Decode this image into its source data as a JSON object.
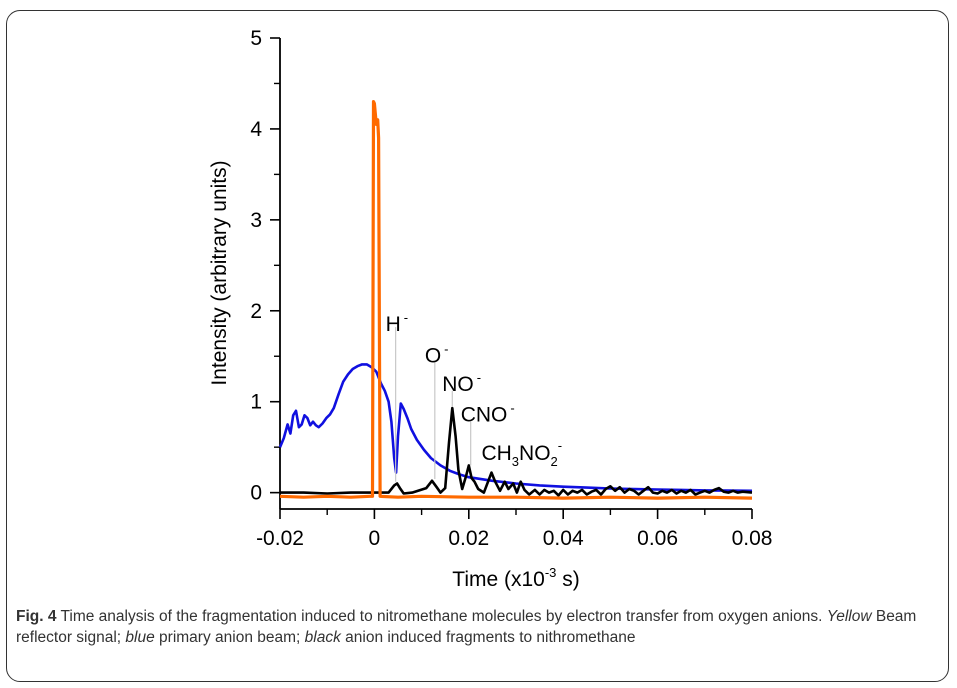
{
  "figure": {
    "caption_label": "Fig. 4",
    "caption_text_1": " Time analysis of the fragmentation induced to nitromethane molecules by electron transfer from oxygen anions. ",
    "caption_italic_1": "Yellow",
    "caption_text_2": " Beam reflector signal; ",
    "caption_italic_2": "blue",
    "caption_text_3": " primary anion beam; ",
    "caption_italic_3": "black",
    "caption_text_4": " anion induced fragments to nithromethane"
  },
  "chart_data": {
    "type": "line",
    "xlabel": "Time (x10",
    "xlabel_sup": "-3",
    "xlabel_tail": " s)",
    "ylabel": "Intensity (arbitrary units)",
    "xlim": [
      -0.02,
      0.08
    ],
    "ylim": [
      -0.18,
      5
    ],
    "x_ticks": [
      -0.02,
      0,
      0.02,
      0.04,
      0.06,
      0.08
    ],
    "x_tick_labels": [
      "-0.02",
      "0",
      "0.02",
      "0.04",
      "0.06",
      "0.08"
    ],
    "y_ticks": [
      0,
      1,
      2,
      3,
      4,
      5
    ],
    "y_tick_labels": [
      "0",
      "1",
      "2",
      "3",
      "4",
      "5"
    ],
    "grid": false,
    "legend": "none",
    "annotations": [
      {
        "text": "H",
        "sup": "-",
        "x": 0.0045,
        "y": 1.78,
        "line_top": 1.82,
        "line_bottom": 0.12
      },
      {
        "text": "O",
        "sup": "-",
        "x": 0.0128,
        "y": 1.43,
        "line_top": 1.45,
        "line_bottom": 0.15
      },
      {
        "text": "NO",
        "sup": "-",
        "x": 0.0165,
        "y": 1.12,
        "line_top": 1.12,
        "line_bottom": 0.95
      },
      {
        "text": "CNO",
        "sup": "-",
        "x": 0.0204,
        "y": 0.78,
        "line_top": 0.78,
        "line_bottom": 0.3
      },
      {
        "text": "CH",
        "sub1": "3",
        "mid": "NO",
        "sub2": "2",
        "sup": "-",
        "x": 0.0248,
        "y": 0.36
      }
    ],
    "series": [
      {
        "name": "Beam reflector signal",
        "color": "#ff6a00",
        "points": [
          [
            -0.02,
            -0.04
          ],
          [
            -0.015,
            -0.05
          ],
          [
            -0.01,
            -0.04
          ],
          [
            -0.005,
            -0.05
          ],
          [
            -0.001,
            -0.04
          ],
          [
            -0.0004,
            -0.04
          ],
          [
            -0.0002,
            4.3
          ],
          [
            0.0,
            4.28
          ],
          [
            0.0004,
            4.05
          ],
          [
            0.0007,
            4.1
          ],
          [
            0.0009,
            3.9
          ],
          [
            0.0012,
            -0.04
          ],
          [
            0.005,
            -0.05
          ],
          [
            0.01,
            -0.04
          ],
          [
            0.02,
            -0.05
          ],
          [
            0.03,
            -0.05
          ],
          [
            0.04,
            -0.06
          ],
          [
            0.05,
            -0.05
          ],
          [
            0.06,
            -0.06
          ],
          [
            0.07,
            -0.05
          ],
          [
            0.08,
            -0.06
          ]
        ]
      },
      {
        "name": "Primary anion beam",
        "color": "#1010e0",
        "points": [
          [
            -0.02,
            0.5
          ],
          [
            -0.0192,
            0.6
          ],
          [
            -0.0184,
            0.75
          ],
          [
            -0.0178,
            0.65
          ],
          [
            -0.0172,
            0.85
          ],
          [
            -0.0166,
            0.9
          ],
          [
            -0.016,
            0.72
          ],
          [
            -0.0154,
            0.75
          ],
          [
            -0.0148,
            0.85
          ],
          [
            -0.0142,
            0.82
          ],
          [
            -0.0136,
            0.74
          ],
          [
            -0.013,
            0.78
          ],
          [
            -0.0124,
            0.74
          ],
          [
            -0.0118,
            0.72
          ],
          [
            -0.011,
            0.76
          ],
          [
            -0.0102,
            0.82
          ],
          [
            -0.0094,
            0.86
          ],
          [
            -0.0086,
            0.93
          ],
          [
            -0.0076,
            1.08
          ],
          [
            -0.0066,
            1.22
          ],
          [
            -0.0056,
            1.3
          ],
          [
            -0.0046,
            1.36
          ],
          [
            -0.0036,
            1.39
          ],
          [
            -0.0026,
            1.41
          ],
          [
            -0.0016,
            1.41
          ],
          [
            -0.0006,
            1.38
          ],
          [
            0.0004,
            1.33
          ],
          [
            0.0014,
            1.2
          ],
          [
            0.0022,
            1.12
          ],
          [
            0.003,
            1.0
          ],
          [
            0.0036,
            0.78
          ],
          [
            0.0042,
            0.38
          ],
          [
            0.0046,
            0.22
          ],
          [
            0.005,
            0.62
          ],
          [
            0.0056,
            0.98
          ],
          [
            0.0062,
            0.92
          ],
          [
            0.007,
            0.82
          ],
          [
            0.0078,
            0.7
          ],
          [
            0.009,
            0.58
          ],
          [
            0.0105,
            0.47
          ],
          [
            0.012,
            0.38
          ],
          [
            0.014,
            0.3
          ],
          [
            0.016,
            0.24
          ],
          [
            0.018,
            0.2
          ],
          [
            0.02,
            0.17
          ],
          [
            0.025,
            0.13
          ],
          [
            0.03,
            0.1
          ],
          [
            0.035,
            0.08
          ],
          [
            0.04,
            0.065
          ],
          [
            0.045,
            0.055
          ],
          [
            0.05,
            0.045
          ],
          [
            0.055,
            0.04
          ],
          [
            0.06,
            0.035
          ],
          [
            0.065,
            0.03
          ],
          [
            0.07,
            0.025
          ],
          [
            0.075,
            0.022
          ],
          [
            0.08,
            0.02
          ]
        ]
      },
      {
        "name": "Anion induced fragments",
        "color": "#000000",
        "points": [
          [
            -0.02,
            0.0
          ],
          [
            -0.015,
            0.0
          ],
          [
            -0.01,
            -0.01
          ],
          [
            -0.005,
            0.0
          ],
          [
            0.0,
            0.0
          ],
          [
            0.003,
            0.0
          ],
          [
            0.0042,
            0.08
          ],
          [
            0.0048,
            0.1
          ],
          [
            0.0054,
            0.05
          ],
          [
            0.0062,
            -0.01
          ],
          [
            0.008,
            0.0
          ],
          [
            0.011,
            0.05
          ],
          [
            0.0122,
            0.13
          ],
          [
            0.0132,
            0.06
          ],
          [
            0.014,
            0.0
          ],
          [
            0.015,
            0.05
          ],
          [
            0.0158,
            0.55
          ],
          [
            0.0165,
            0.93
          ],
          [
            0.0172,
            0.62
          ],
          [
            0.0178,
            0.25
          ],
          [
            0.0186,
            0.04
          ],
          [
            0.0194,
            0.18
          ],
          [
            0.02,
            0.3
          ],
          [
            0.0206,
            0.16
          ],
          [
            0.0212,
            0.12
          ],
          [
            0.022,
            0.04
          ],
          [
            0.0232,
            0.0
          ],
          [
            0.0248,
            0.22
          ],
          [
            0.0256,
            0.12
          ],
          [
            0.0266,
            0.02
          ],
          [
            0.0276,
            0.12
          ],
          [
            0.0284,
            0.04
          ],
          [
            0.0294,
            0.1
          ],
          [
            0.0302,
            0.0
          ],
          [
            0.031,
            0.12
          ],
          [
            0.0318,
            0.03
          ],
          [
            0.0328,
            -0.02
          ],
          [
            0.034,
            0.03
          ],
          [
            0.035,
            -0.02
          ],
          [
            0.036,
            0.03
          ],
          [
            0.037,
            0.0
          ],
          [
            0.038,
            0.02
          ],
          [
            0.039,
            -0.03
          ],
          [
            0.04,
            0.03
          ],
          [
            0.041,
            -0.02
          ],
          [
            0.042,
            0.02
          ],
          [
            0.043,
            0.0
          ],
          [
            0.044,
            0.03
          ],
          [
            0.045,
            -0.02
          ],
          [
            0.046,
            0.01
          ],
          [
            0.047,
            0.03
          ],
          [
            0.048,
            -0.02
          ],
          [
            0.049,
            0.04
          ],
          [
            0.05,
            0.07
          ],
          [
            0.051,
            0.02
          ],
          [
            0.052,
            0.06
          ],
          [
            0.053,
            0.0
          ],
          [
            0.054,
            0.04
          ],
          [
            0.055,
            0.02
          ],
          [
            0.056,
            -0.02
          ],
          [
            0.057,
            0.02
          ],
          [
            0.058,
            0.06
          ],
          [
            0.059,
            0.0
          ],
          [
            0.06,
            -0.01
          ],
          [
            0.061,
            0.02
          ],
          [
            0.062,
            0.0
          ],
          [
            0.063,
            0.03
          ],
          [
            0.064,
            -0.01
          ],
          [
            0.065,
            0.02
          ],
          [
            0.066,
            0.0
          ],
          [
            0.067,
            0.03
          ],
          [
            0.068,
            -0.02
          ],
          [
            0.069,
            0.0
          ],
          [
            0.07,
            0.02
          ],
          [
            0.071,
            0.0
          ],
          [
            0.072,
            0.03
          ],
          [
            0.073,
            0.05
          ],
          [
            0.074,
            0.01
          ],
          [
            0.075,
            0.0
          ],
          [
            0.076,
            0.02
          ],
          [
            0.077,
            0.0
          ],
          [
            0.078,
            0.01
          ],
          [
            0.08,
            0.0
          ]
        ]
      }
    ]
  }
}
